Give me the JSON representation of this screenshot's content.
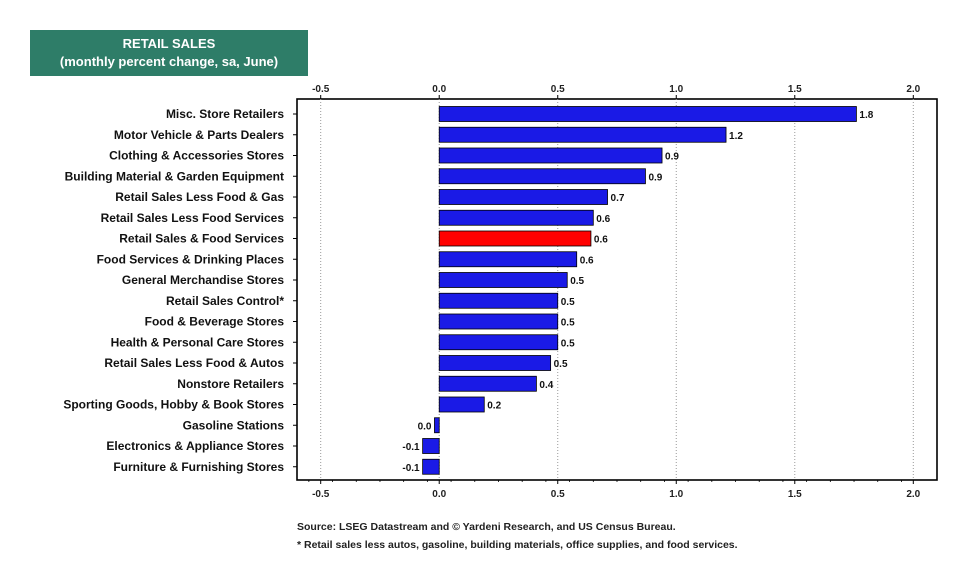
{
  "header": {
    "title": "RETAIL SALES",
    "subtitle": "(monthly percent change, sa,  June)"
  },
  "colors": {
    "header_bg": "#2e7d68",
    "bar": "#1a1ae6",
    "highlight_bar": "#ff0000"
  },
  "chart_data": {
    "type": "bar",
    "orientation": "horizontal",
    "title": "RETAIL SALES",
    "subtitle": "(monthly percent change, sa,  June)",
    "xlim": [
      -0.6,
      2.1
    ],
    "x_ticks": [
      -0.5,
      0.0,
      0.5,
      1.0,
      1.5,
      2.0
    ],
    "x_tick_labels": [
      "-0.5",
      "0.0",
      "0.5",
      "1.0",
      "1.5",
      "2.0"
    ],
    "grid": "vertical dotted",
    "highlight_category": "Retail Sales & Food Services",
    "categories": [
      "Misc. Store Retailers",
      "Motor Vehicle & Parts Dealers",
      "Clothing & Accessories Stores",
      "Building Material & Garden Equipment",
      "Retail Sales Less Food & Gas",
      "Retail Sales Less Food Services",
      "Retail Sales & Food Services",
      "Food Services & Drinking Places",
      "General Merchandise Stores",
      "Retail Sales Control*",
      "Food & Beverage Stores",
      "Health & Personal Care Stores",
      "Retail Sales Less Food & Autos",
      "Nonstore Retailers",
      "Sporting Goods, Hobby & Book Stores",
      "Gasoline Stations",
      "Electronics & Appliance Stores",
      "Furniture & Furnishing Stores"
    ],
    "values": [
      1.76,
      1.21,
      0.94,
      0.87,
      0.71,
      0.65,
      0.64,
      0.58,
      0.54,
      0.5,
      0.5,
      0.5,
      0.47,
      0.41,
      0.19,
      -0.02,
      -0.07,
      -0.07
    ],
    "value_labels": [
      "1.8",
      "1.2",
      "0.9",
      "0.9",
      "0.7",
      "0.6",
      "0.6",
      "0.6",
      "0.5",
      "0.5",
      "0.5",
      "0.5",
      "0.5",
      "0.4",
      "0.2",
      "0.0",
      "-0.1",
      "-0.1"
    ]
  },
  "footer": {
    "source": "Source: LSEG Datastream and © Yardeni Research, and US Census Bureau.",
    "note": "* Retail sales less autos, gasoline, building materials, office supplies, and food services."
  }
}
